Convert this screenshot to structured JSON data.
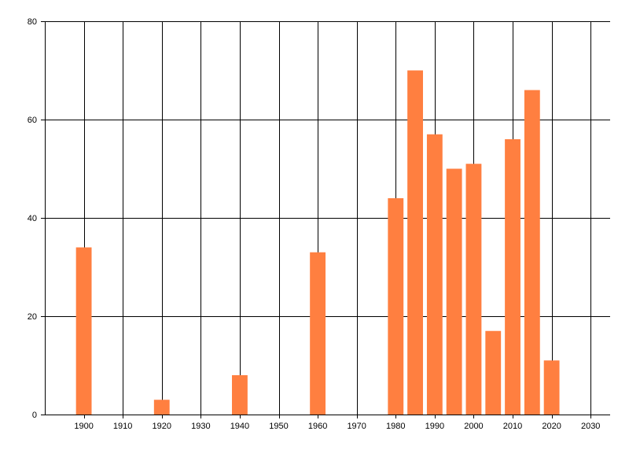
{
  "chart_data": {
    "type": "bar",
    "title": "",
    "xlabel": "",
    "ylabel": "",
    "x": [
      1900,
      1920,
      1940,
      1960,
      1980,
      1985,
      1990,
      1995,
      2000,
      2005,
      2010,
      2015,
      2020
    ],
    "values": [
      34,
      3,
      8,
      33,
      44,
      70,
      57,
      50,
      51,
      17,
      56,
      66,
      11
    ],
    "xlim": [
      1890,
      2035
    ],
    "ylim": [
      0,
      80
    ],
    "x_ticks": [
      "1900",
      "1910",
      "1920",
      "1930",
      "1940",
      "1950",
      "1960",
      "1970",
      "1980",
      "1990",
      "2000",
      "2010",
      "2020",
      "2030"
    ],
    "y_ticks": [
      "0",
      "20",
      "40",
      "60",
      "80"
    ],
    "grid": true,
    "bar_color": "#FF7F40",
    "grid_color": "#000000"
  }
}
